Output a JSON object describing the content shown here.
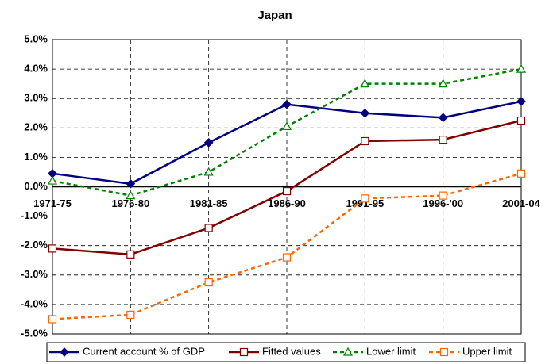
{
  "chart_data": {
    "type": "line",
    "title": "Japan",
    "categories": [
      "1971-75",
      "1976-80",
      "1981-85",
      "1986-90",
      "1991-95",
      "1996-'00",
      "2001-04"
    ],
    "series": [
      {
        "name": "Current account % of GDP",
        "color": "#000080",
        "style": "solid",
        "marker": "diamond",
        "values": [
          0.45,
          0.1,
          1.5,
          2.8,
          2.5,
          2.35,
          2.9
        ]
      },
      {
        "name": "Fitted values",
        "color": "#800000",
        "style": "solid",
        "marker": "square",
        "values": [
          -2.1,
          -2.3,
          -1.4,
          -0.15,
          1.55,
          1.6,
          2.25
        ]
      },
      {
        "name": "Lower limit",
        "color": "#008000",
        "style": "dashed",
        "marker": "triangle",
        "values": [
          0.2,
          -0.3,
          0.5,
          2.05,
          3.5,
          3.5,
          4.0
        ]
      },
      {
        "name": "Upper limit",
        "color": "#ff6600",
        "style": "dashed",
        "marker": "square",
        "values": [
          -4.5,
          -4.35,
          -3.25,
          -2.4,
          -0.4,
          -0.3,
          0.45
        ]
      }
    ],
    "ylim": [
      -5,
      5
    ],
    "yticks": [
      {
        "value": -5,
        "label": "-5.0%"
      },
      {
        "value": -4,
        "label": "-4.0%"
      },
      {
        "value": -3,
        "label": "-3.0%"
      },
      {
        "value": -2,
        "label": "-2.0%"
      },
      {
        "value": -1,
        "label": "-1.0%"
      },
      {
        "value": 0,
        "label": "0.0%"
      },
      {
        "value": 1,
        "label": "1.0%"
      },
      {
        "value": 2,
        "label": "2.0%"
      },
      {
        "value": 3,
        "label": "3.0%"
      },
      {
        "value": 4,
        "label": "4.0%"
      },
      {
        "value": 5,
        "label": "5.0%"
      }
    ],
    "grid": true,
    "legend": "bottom"
  }
}
